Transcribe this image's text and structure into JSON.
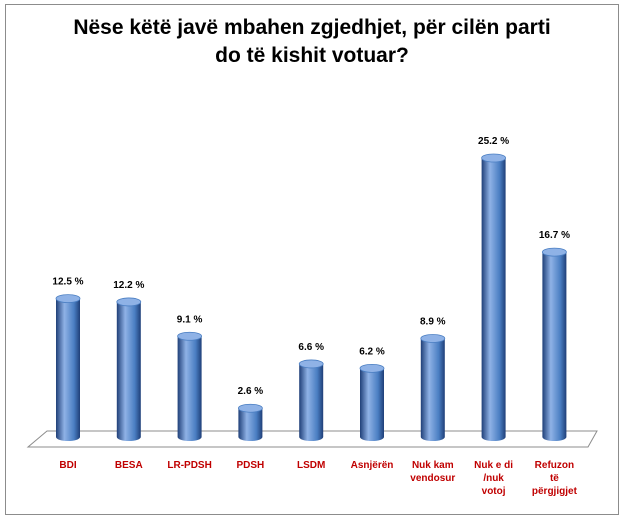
{
  "title_lines": [
    "Nëse këtë javë mbahen zgjedhjet, për cilën parti",
    "do të kishit votuar?"
  ],
  "colors": {
    "bar": "#4a7ec2",
    "bar_dark": "#1f3f78",
    "bar_light": "#8fb2e6",
    "category_text": "#c00000"
  },
  "chart_data": {
    "type": "bar",
    "title": "Nëse këtë javë mbahen zgjedhjet, për cilën parti do të kishit votuar?",
    "categories": [
      [
        "BDI"
      ],
      [
        "BESA"
      ],
      [
        "LR-PDSH"
      ],
      [
        "PDSH"
      ],
      [
        "LSDM"
      ],
      [
        "Asnjërën"
      ],
      [
        "Nuk kam",
        "vendosur"
      ],
      [
        "Nuk e di",
        "/nuk",
        "votoj"
      ],
      [
        "Refuzon",
        "të",
        "përgjigjet"
      ]
    ],
    "values": [
      12.5,
      12.2,
      9.1,
      2.6,
      6.6,
      6.2,
      8.9,
      25.2,
      16.7
    ],
    "value_labels": [
      "12.5 %",
      "12.2 %",
      "9.1 %",
      "2.6 %",
      "6.6 %",
      "6.2 %",
      "8.9 %",
      "25.2 %",
      "16.7 %"
    ],
    "ylim": [
      0,
      25.2
    ],
    "xlabel": "",
    "ylabel": "",
    "grid": false,
    "legend": "none",
    "style": "3d-cylinder"
  }
}
